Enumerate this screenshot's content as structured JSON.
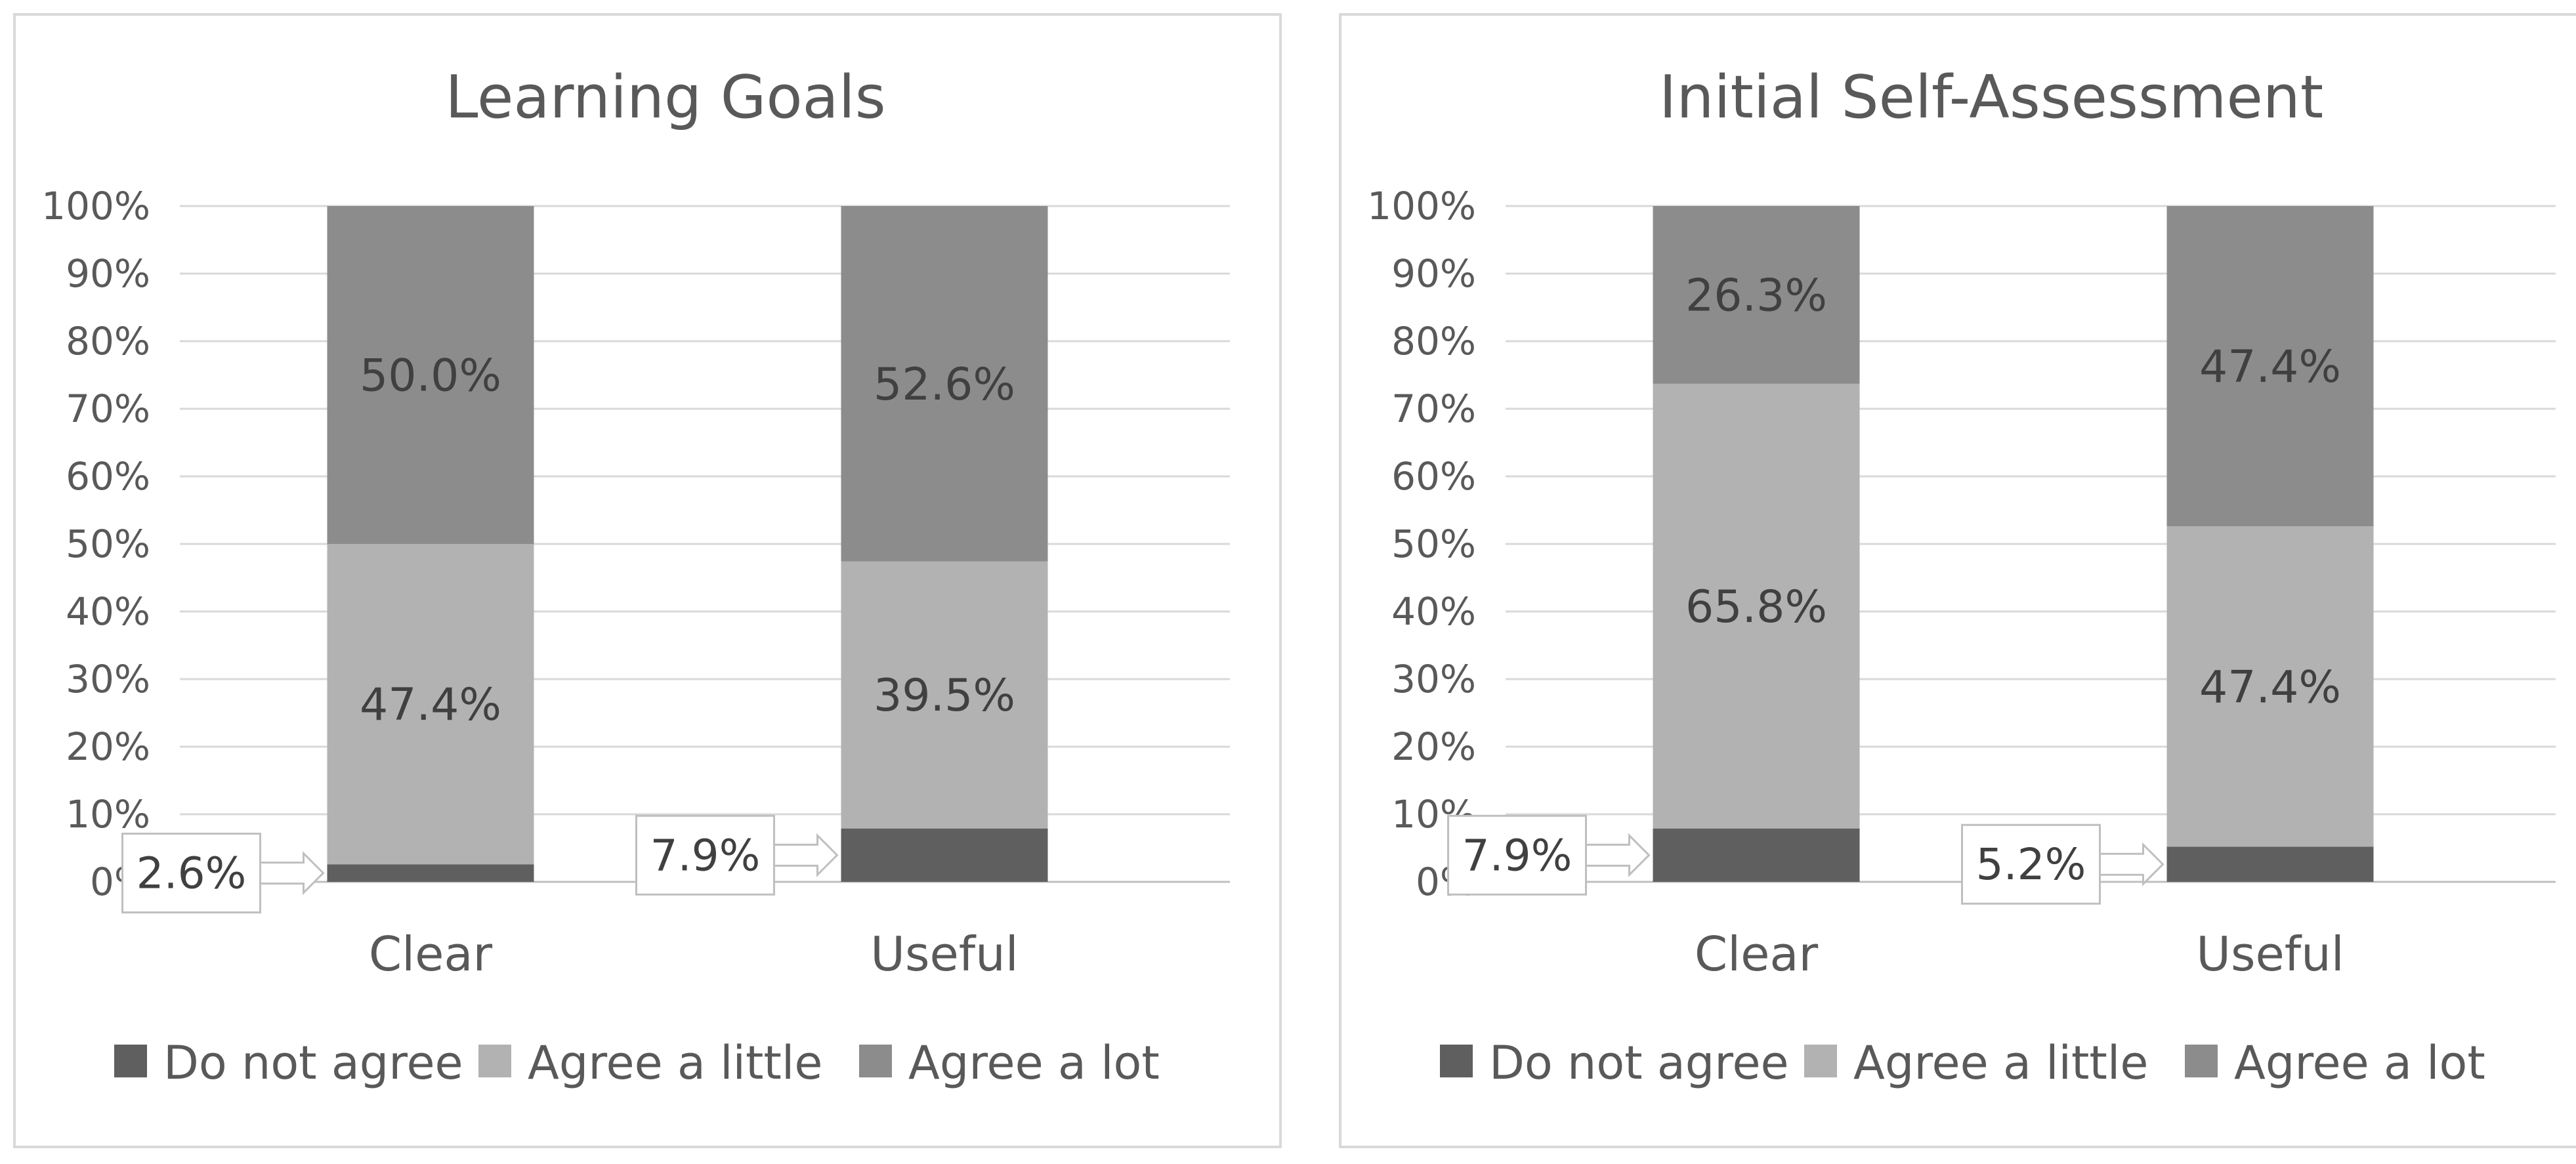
{
  "chart_data": [
    {
      "type": "bar",
      "stacked": true,
      "title": "Learning Goals",
      "categories": [
        "Clear",
        "Useful"
      ],
      "series": [
        {
          "name": "Do not agree",
          "values": [
            2.6,
            7.9
          ],
          "labels": [
            "2.6%",
            "7.9%"
          ],
          "color": "#5f5f5f"
        },
        {
          "name": "Agree a little",
          "values": [
            47.4,
            39.5
          ],
          "labels": [
            "47.4%",
            "39.5%"
          ],
          "color": "#b2b2b2"
        },
        {
          "name": "Agree a lot",
          "values": [
            50.0,
            52.6
          ],
          "labels": [
            "50.0%",
            "52.6%"
          ],
          "color": "#8c8c8c"
        }
      ],
      "yticks": [
        "0%",
        "10%",
        "20%",
        "30%",
        "40%",
        "50%",
        "60%",
        "70%",
        "80%",
        "90%",
        "100%"
      ],
      "ylim": [
        0,
        100
      ],
      "grid": true,
      "legend": "bottom"
    },
    {
      "type": "bar",
      "stacked": true,
      "title": "Initial Self-Assessment",
      "categories": [
        "Clear",
        "Useful"
      ],
      "series": [
        {
          "name": "Do not agree",
          "values": [
            7.9,
            5.2
          ],
          "labels": [
            "7.9%",
            "5.2%"
          ],
          "color": "#5f5f5f"
        },
        {
          "name": "Agree a little",
          "values": [
            65.8,
            47.4
          ],
          "labels": [
            "65.8%",
            "47.4%"
          ],
          "color": "#b2b2b2"
        },
        {
          "name": "Agree a lot",
          "values": [
            26.3,
            47.4
          ],
          "labels": [
            "26.3%",
            "47.4%"
          ],
          "color": "#8c8c8c"
        }
      ],
      "yticks": [
        "0%",
        "10%",
        "20%",
        "30%",
        "40%",
        "50%",
        "60%",
        "70%",
        "80%",
        "90%",
        "100%"
      ],
      "ylim": [
        0,
        100
      ],
      "grid": true,
      "legend": "bottom"
    }
  ]
}
